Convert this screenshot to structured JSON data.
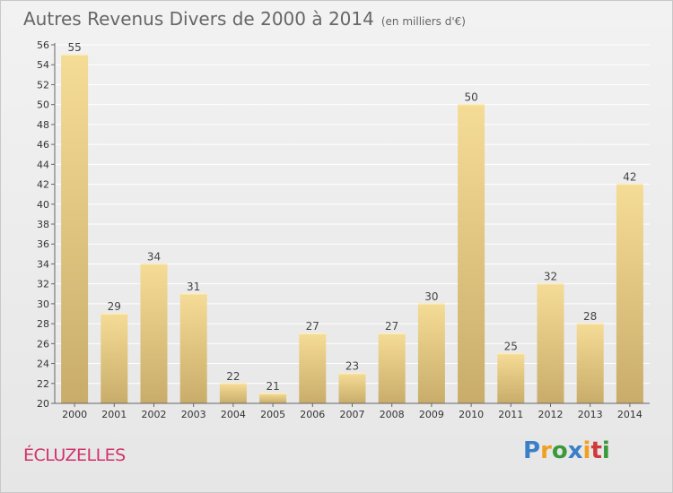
{
  "title": "Autres Revenus Divers de 2000 à 2014",
  "subtitle": "(en milliers d'€)",
  "commune": "ÉCLUZELLES",
  "logo": {
    "text": "Proxiti",
    "letters": [
      {
        "char": "P",
        "color": "#3a7fc8"
      },
      {
        "char": "r",
        "color": "#f0a020"
      },
      {
        "char": "o",
        "color": "#3a9a3a"
      },
      {
        "char": "x",
        "color": "#3a7fc8"
      },
      {
        "char": "i",
        "color": "#f0a020"
      },
      {
        "char": "t",
        "color": "#d03a3a"
      },
      {
        "char": "i",
        "color": "#3a9a3a"
      }
    ]
  },
  "colors": {
    "bar_top": "#f5dc96",
    "bar_bottom": "#c9ac6a",
    "grid": "#ffffff",
    "axis": "#666666"
  },
  "chart_data": {
    "type": "bar",
    "categories": [
      "2000",
      "2001",
      "2002",
      "2003",
      "2004",
      "2005",
      "2006",
      "2007",
      "2008",
      "2009",
      "2010",
      "2011",
      "2012",
      "2013",
      "2014"
    ],
    "values": [
      55,
      29,
      34,
      31,
      22,
      21,
      27,
      23,
      27,
      30,
      50,
      25,
      32,
      28,
      42
    ],
    "ylim": [
      20,
      56
    ],
    "ytick_step": 2,
    "grid": true,
    "data_labels": true
  }
}
